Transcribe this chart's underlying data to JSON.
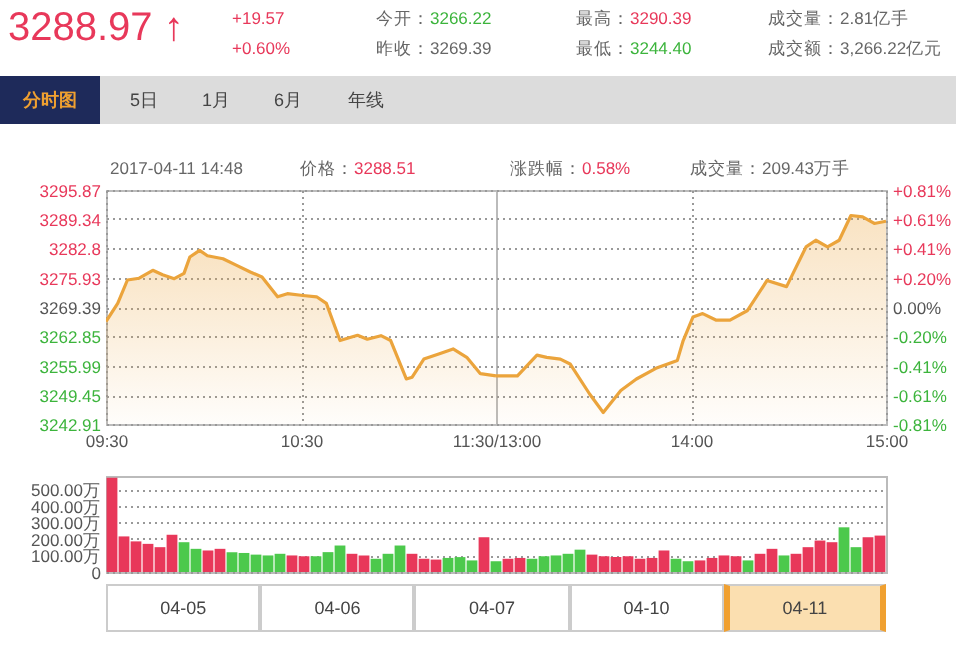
{
  "chart_data": [
    {
      "type": "area",
      "title": "3288.97 ↑",
      "annotations": [
        "+19.57",
        "+0.60%",
        "今开：3266.22",
        "昨收：3269.39",
        "最高：3290.39",
        "最低：3244.40",
        "成交量：2.81亿手",
        "成交额：3,266.22亿元",
        "分时图",
        "5日",
        "1月",
        "6月",
        "年线",
        "2017-04-11 14:48",
        "价格：3288.51",
        "涨跌幅：0.58%",
        "成交量：209.43万手"
      ],
      "x": [
        9.5,
        9.56,
        9.61,
        9.67,
        9.74,
        9.79,
        9.85,
        9.9,
        9.93,
        9.98,
        10.02,
        10.1,
        10.17,
        10.24,
        10.3,
        10.38,
        10.43,
        10.51,
        10.58,
        10.63,
        10.7,
        10.79,
        10.84,
        10.91,
        10.96,
        11.04,
        11.07,
        11.13,
        11.21,
        11.28,
        11.35,
        11.42,
        11.5
      ],
      "series": [
        {
          "color": "#eba43c",
          "values": [
            3266.1,
            3270.2,
            3275.5,
            3275.9,
            3277.7,
            3276.7,
            3275.8,
            3277,
            3280.7,
            3282.2,
            3281,
            3280.3,
            3278.8,
            3277.3,
            3276.2,
            3271.7,
            3272.4,
            3272,
            3271.7,
            3270.2,
            3261.8,
            3263,
            3262.1,
            3262.9,
            3261.8,
            3253.1,
            3253.5,
            3257.6,
            3258.8,
            3259.9,
            3258,
            3254.3,
            3253.8
          ]
        }
      ],
      "xlim": [
        9.5,
        11.5
      ],
      "xticks": [
        {
          "value": 9.5,
          "label": "09:30"
        },
        {
          "value": 10.5,
          "label": "10:30"
        },
        {
          "value": 11.5,
          "label": "11:30/13:00"
        }
      ],
      "ylim": [
        3242.91,
        3295.87
      ],
      "yticks": [
        3242.91,
        3249.45,
        3255.99,
        3262.85,
        3269.39,
        3275.93,
        3282.8,
        3289.34,
        3295.87
      ],
      "grid": true
    },
    {
      "type": "area",
      "x": [
        13,
        13.11,
        13.21,
        13.26,
        13.33,
        13.38,
        13.48,
        13.55,
        13.64,
        13.72,
        13.82,
        13.93,
        13.96,
        14.01,
        14.06,
        14.13,
        14.2,
        14.29,
        14.39,
        14.49,
        14.59,
        14.64,
        14.7,
        14.76,
        14.82,
        14.88,
        14.94,
        15
      ],
      "series": [
        {
          "color": "#eba43c",
          "values": [
            3253.8,
            3253.8,
            3258.5,
            3258,
            3257.6,
            3256.5,
            3249.7,
            3245.5,
            3250.5,
            3253.1,
            3255.5,
            3257.3,
            3261.8,
            3267.1,
            3267.9,
            3266.4,
            3266.4,
            3268.6,
            3275.4,
            3274,
            3283,
            3284.5,
            3283,
            3284.5,
            3290.1,
            3289.8,
            3288.3,
            3288.8
          ]
        }
      ],
      "xlim": [
        13,
        15
      ],
      "xticks": [
        {
          "value": 14,
          "label": "14:00"
        },
        {
          "value": 15,
          "label": "15:00"
        }
      ],
      "ylim": [
        3242.91,
        3295.87
      ],
      "yticks": [
        3242.91,
        3249.45,
        3255.99,
        3262.85,
        3269.39,
        3275.93,
        3282.8,
        3289.34,
        3295.87
      ],
      "y2lim": [
        -0.81,
        0.81
      ],
      "y2ticks": [
        {
          "value": -0.81,
          "label": "-0.81%"
        },
        {
          "value": -0.61,
          "label": "-0.61%"
        },
        {
          "value": -0.41,
          "label": "-0.41%"
        },
        {
          "value": -0.2,
          "label": "-0.20%"
        },
        {
          "value": 0,
          "label": "0.00%"
        },
        {
          "value": 0.2,
          "label": "+0.20%"
        },
        {
          "value": 0.41,
          "label": "+0.41%"
        },
        {
          "value": 0.61,
          "label": "+0.61%"
        },
        {
          "value": 0.81,
          "label": "+0.81%"
        }
      ],
      "grid": true,
      "tick_labels": "x"
    },
    {
      "type": "bar",
      "annotations": [
        "04-05",
        "04-06",
        "04-07",
        "04-10",
        "04-11"
      ],
      "categories": [
        null,
        null,
        null,
        null,
        null,
        null,
        null,
        null,
        null,
        null,
        null,
        null,
        null,
        null,
        null,
        null,
        null,
        null,
        null,
        null,
        null,
        null,
        null,
        null,
        null,
        null,
        null,
        null,
        null,
        null,
        null,
        null,
        null,
        null,
        null,
        null,
        null,
        null,
        null,
        null,
        null,
        null,
        null,
        null,
        null,
        null,
        null,
        null,
        null,
        null,
        null,
        null,
        null,
        null,
        null,
        null,
        null,
        null,
        null,
        null,
        null,
        null,
        null,
        null,
        null
      ],
      "values": [
        570,
        215,
        185,
        170,
        150,
        225,
        180,
        140,
        130,
        140,
        120,
        115,
        105,
        100,
        110,
        100,
        95,
        95,
        120,
        160,
        110,
        100,
        80,
        110,
        160,
        110,
        80,
        75,
        85,
        90,
        70,
        210,
        65,
        80,
        85,
        80,
        95,
        100,
        110,
        135,
        105,
        95,
        90,
        95,
        80,
        85,
        130,
        80,
        65,
        70,
        85,
        100,
        95,
        70,
        110,
        140,
        100,
        110,
        150,
        190,
        180,
        270,
        150,
        210,
        220
      ],
      "colors": [
        "#e8385a",
        "#e8385a",
        "#e8385a",
        "#e8385a",
        "#e8385a",
        "#e8385a",
        "#4cc94c",
        "#4cc94c",
        "#e8385a",
        "#e8385a",
        "#4cc94c",
        "#4cc94c",
        "#4cc94c",
        "#4cc94c",
        "#4cc94c",
        "#e8385a",
        "#e8385a",
        "#4cc94c",
        "#4cc94c",
        "#4cc94c",
        "#e8385a",
        "#e8385a",
        "#4cc94c",
        "#4cc94c",
        "#4cc94c",
        "#e8385a",
        "#e8385a",
        "#e8385a",
        "#4cc94c",
        "#4cc94c",
        "#4cc94c",
        "#e8385a",
        "#4cc94c",
        "#e8385a",
        "#e8385a",
        "#4cc94c",
        "#4cc94c",
        "#4cc94c",
        "#4cc94c",
        "#4cc94c",
        "#e8385a",
        "#e8385a",
        "#e8385a",
        "#e8385a",
        "#e8385a",
        "#e8385a",
        "#e8385a",
        "#4cc94c",
        "#4cc94c",
        "#e8385a",
        "#e8385a",
        "#e8385a",
        "#e8385a",
        "#4cc94c",
        "#e8385a",
        "#e8385a",
        "#4cc94c",
        "#e8385a",
        "#e8385a",
        "#e8385a",
        "#e8385a",
        "#4cc94c",
        "#4cc94c",
        "#e8385a",
        "#e8385a"
      ],
      "ylim": [
        0,
        580
      ],
      "yticks": [
        {
          "value": 0,
          "label": "0"
        },
        {
          "value": 100,
          "label": "100.00万"
        },
        {
          "value": 200,
          "label": "200.00万"
        },
        {
          "value": 300,
          "label": "300.00万"
        },
        {
          "value": 400,
          "label": "400.00万"
        },
        {
          "value": 500,
          "label": "500.00万"
        }
      ],
      "grid": "y",
      "tick_labels": "y"
    }
  ]
}
